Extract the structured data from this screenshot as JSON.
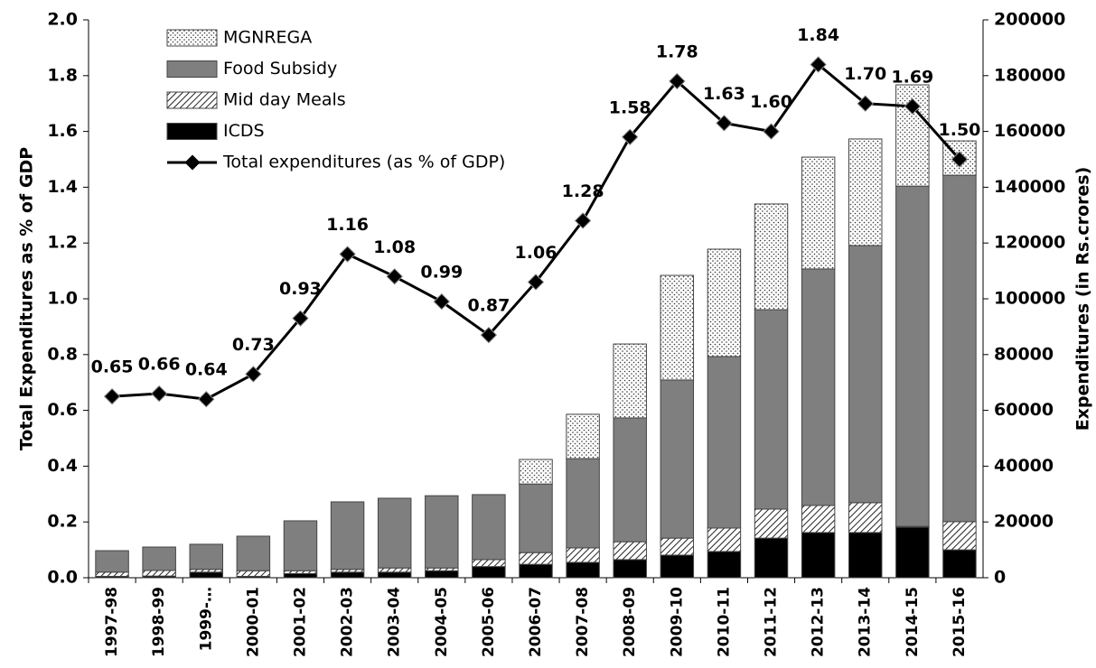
{
  "chart_data": {
    "type": "bar",
    "categories": [
      "1997-98",
      "1998-99",
      "1999-…",
      "2000-01",
      "2001-02",
      "2002-03",
      "2003-04",
      "2004-05",
      "2005-06",
      "2006-07",
      "2007-08",
      "2008-09",
      "2009-10",
      "2010-11",
      "2011-12",
      "2012-13",
      "2013-14",
      "2014-15",
      "2015-16"
    ],
    "y_label": "Total Expenditures as % of GDP",
    "y2_label": "Expenditures (in Rs.crores)",
    "ylim": [
      0,
      2.0
    ],
    "yticks": [
      {
        "value": 0,
        "label": "0.0"
      },
      {
        "value": 0.2,
        "label": "0.2"
      },
      {
        "value": 0.4,
        "label": "0.4"
      },
      {
        "value": 0.6,
        "label": "0.6"
      },
      {
        "value": 0.8,
        "label": "0.8"
      },
      {
        "value": 1.0,
        "label": "1.0"
      },
      {
        "value": 1.2,
        "label": "1.2"
      },
      {
        "value": 1.4,
        "label": "1.4"
      },
      {
        "value": 1.6,
        "label": "1.6"
      },
      {
        "value": 1.8,
        "label": "1.8"
      },
      {
        "value": 2.0,
        "label": "2.0"
      }
    ],
    "y2lim": [
      0,
      200000
    ],
    "y2ticks": [
      0,
      20000,
      40000,
      60000,
      80000,
      100000,
      120000,
      140000,
      160000,
      180000,
      200000
    ],
    "legend": "top-left",
    "series": [
      {
        "name": "MGNREGA",
        "type": "bar",
        "axis": "y2",
        "color": "#ffffff",
        "pattern": "dots",
        "values": [
          0,
          0,
          0,
          0,
          0,
          0,
          0,
          0,
          0,
          8800,
          15900,
          26500,
          37500,
          38500,
          37900,
          40100,
          38200,
          36300,
          12300
        ]
      },
      {
        "name": "Food Subsidy",
        "type": "bar",
        "axis": "y2",
        "color": "#7f7f7f",
        "pattern": "solid",
        "values": [
          7700,
          8400,
          9000,
          12400,
          17900,
          24200,
          25000,
          25900,
          23300,
          24600,
          32000,
          44400,
          56700,
          61500,
          71500,
          84800,
          92200,
          122000,
          124200
        ]
      },
      {
        "name": "Mid day Meals",
        "type": "bar",
        "axis": "y2",
        "color": "#ffffff",
        "pattern": "hatch",
        "values": [
          1500,
          2000,
          1000,
          2000,
          1000,
          1000,
          1500,
          1000,
          2500,
          4200,
          5200,
          6400,
          6100,
          8400,
          10400,
          9700,
          10700,
          300,
          10100
        ]
      },
      {
        "name": "ICDS",
        "type": "bar",
        "axis": "y2",
        "color": "#000000",
        "pattern": "solid",
        "values": [
          500,
          600,
          2000,
          500,
          1500,
          2000,
          2000,
          2500,
          4000,
          4800,
          5500,
          6500,
          8100,
          9400,
          14200,
          16200,
          16200,
          18100,
          10000
        ]
      },
      {
        "name": "Total expenditures (as % of GDP)",
        "type": "line",
        "axis": "y",
        "color": "#000000",
        "values": [
          0.65,
          0.66,
          0.64,
          0.73,
          0.93,
          1.16,
          1.08,
          0.99,
          0.87,
          1.06,
          1.28,
          1.58,
          1.78,
          1.63,
          1.6,
          1.84,
          1.7,
          1.69,
          1.5
        ],
        "value_labels": [
          "0.65",
          "0.66",
          "0.64",
          "0.73",
          "0.93",
          "1.16",
          "1.08",
          "0.99",
          "0.87",
          "1.06",
          "1.28",
          "1.58",
          "1.78",
          "1.63",
          "1.60",
          "1.84",
          "1.70",
          "1.69",
          "1.50"
        ]
      }
    ]
  }
}
